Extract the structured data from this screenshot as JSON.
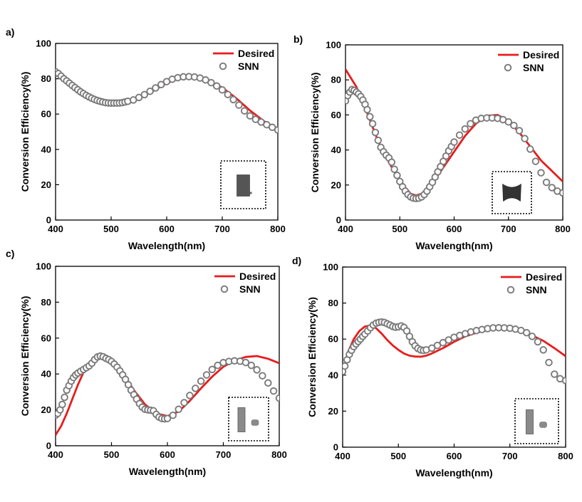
{
  "figure": {
    "colors": {
      "desired": "#e81c1c",
      "snn": "#7a7a7a",
      "axis": "#000000"
    }
  },
  "chart_data": [
    {
      "panel_label": "a)",
      "type": "line",
      "title": "",
      "xlabel": "Wavelength(nm)",
      "ylabel": "Conversion Efficiency(%)",
      "xlim": [
        400,
        800
      ],
      "ylim": [
        0,
        100
      ],
      "xticks": [
        400,
        500,
        600,
        700,
        800
      ],
      "yticks": [
        0,
        20,
        40,
        60,
        80,
        100
      ],
      "legend": {
        "entries": [
          "Desired",
          "SNN"
        ],
        "position": "top-right"
      },
      "inset": "unit-cell-rectangle",
      "series": [
        {
          "name": "Desired",
          "kind": "line",
          "x": [
            400,
            425,
            450,
            475,
            500,
            525,
            550,
            575,
            600,
            625,
            650,
            675,
            700,
            725,
            750,
            775,
            800
          ],
          "y": [
            84,
            78,
            72,
            68,
            66,
            66.5,
            69,
            73,
            77.5,
            80.5,
            81,
            79,
            75,
            69,
            62,
            56,
            51
          ]
        },
        {
          "name": "SNN",
          "kind": "scatter",
          "x": [
            400,
            405,
            410,
            415,
            420,
            425,
            430,
            435,
            440,
            445,
            450,
            455,
            460,
            465,
            470,
            475,
            480,
            485,
            490,
            495,
            500,
            505,
            510,
            515,
            520,
            525,
            530,
            540,
            550,
            560,
            570,
            580,
            590,
            600,
            610,
            620,
            630,
            640,
            650,
            660,
            670,
            680,
            690,
            700,
            710,
            720,
            730,
            740,
            750,
            760,
            770,
            780,
            790,
            800
          ],
          "y": [
            84,
            83,
            81.5,
            80,
            78.8,
            77.5,
            76.2,
            75,
            73.8,
            72.6,
            71.6,
            70.6,
            69.8,
            69,
            68.3,
            67.7,
            67.2,
            66.8,
            66.5,
            66.3,
            66.2,
            66.2,
            66.2,
            66.3,
            66.5,
            66.8,
            67.2,
            68,
            69.4,
            71,
            72.9,
            74.8,
            76.7,
            78.4,
            79.7,
            80.6,
            81.1,
            81.2,
            81,
            80.4,
            79.3,
            77.8,
            75.9,
            73.7,
            71.1,
            68.2,
            65.1,
            61.8,
            59,
            57,
            55.5,
            54,
            52.5,
            51
          ]
        }
      ]
    },
    {
      "panel_label": "b)",
      "type": "line",
      "title": "",
      "xlabel": "Wavelength(nm)",
      "ylabel": "Conversion Efficiency(%)",
      "xlim": [
        400,
        800
      ],
      "ylim": [
        0,
        100
      ],
      "xticks": [
        400,
        500,
        600,
        700,
        800
      ],
      "yticks": [
        0,
        20,
        40,
        60,
        80,
        100
      ],
      "legend": {
        "entries": [
          "Desired",
          "SNN"
        ],
        "position": "top-right"
      },
      "inset": "unit-cell-bowtie",
      "series": [
        {
          "name": "Desired",
          "kind": "line",
          "x": [
            400,
            420,
            440,
            460,
            480,
            500,
            520,
            530,
            540,
            560,
            580,
            600,
            620,
            640,
            660,
            680,
            700,
            720,
            740,
            760,
            780,
            800
          ],
          "y": [
            86,
            76,
            61,
            45,
            33,
            22,
            15,
            14,
            15,
            21,
            30,
            39,
            48,
            55,
            59.5,
            60,
            56.5,
            50,
            42,
            34,
            28,
            22
          ]
        },
        {
          "name": "SNN",
          "kind": "scatter",
          "x": [
            400,
            404,
            408,
            412,
            416,
            420,
            424,
            428,
            432,
            436,
            440,
            445,
            450,
            455,
            460,
            465,
            470,
            475,
            480,
            485,
            490,
            495,
            500,
            505,
            510,
            515,
            520,
            525,
            530,
            535,
            540,
            545,
            550,
            555,
            560,
            565,
            570,
            575,
            580,
            585,
            590,
            595,
            600,
            610,
            620,
            630,
            640,
            650,
            660,
            670,
            680,
            690,
            700,
            710,
            720,
            730,
            740,
            750,
            760,
            770,
            780,
            790,
            800
          ],
          "y": [
            68,
            71,
            73,
            74.5,
            74,
            73,
            72,
            70.5,
            68.5,
            66,
            63,
            59,
            55,
            50,
            45.5,
            41.5,
            39,
            37,
            35.5,
            33,
            29,
            25.5,
            22,
            19,
            16.5,
            14.5,
            13.2,
            12.5,
            12.3,
            12.5,
            13.2,
            14.5,
            16.5,
            19,
            21.5,
            24.5,
            27.5,
            30.5,
            33.5,
            36.5,
            39.5,
            42,
            44.5,
            48.5,
            52,
            55,
            57,
            58,
            58.3,
            58.3,
            58,
            57.3,
            56,
            54,
            51,
            46.5,
            40.5,
            33.5,
            27,
            21.5,
            18.5,
            16.5,
            15.5
          ]
        }
      ]
    },
    {
      "panel_label": "c)",
      "type": "line",
      "title": "",
      "xlabel": "Wavelength(nm)",
      "ylabel": "Conversion Efficiency(%)",
      "xlim": [
        400,
        800
      ],
      "ylim": [
        0,
        100
      ],
      "xticks": [
        400,
        500,
        600,
        700,
        800
      ],
      "yticks": [
        0,
        20,
        40,
        60,
        80,
        100
      ],
      "legend": {
        "entries": [
          "Desired",
          "SNN"
        ],
        "position": "top-right"
      },
      "inset": "unit-cell-bar-and-dot",
      "series": [
        {
          "name": "Desired",
          "kind": "line",
          "x": [
            400,
            410,
            420,
            430,
            440,
            450,
            460,
            470,
            480,
            490,
            500,
            520,
            540,
            560,
            580,
            600,
            620,
            640,
            660,
            680,
            700,
            720,
            740,
            760,
            780,
            800
          ],
          "y": [
            6,
            11,
            18,
            26,
            34,
            41,
            46,
            49,
            50,
            49.5,
            47.5,
            40.5,
            31,
            23,
            18,
            16.5,
            19,
            25,
            32,
            38.5,
            44,
            47.5,
            49.5,
            50,
            48.5,
            46
          ]
        },
        {
          "name": "SNN",
          "kind": "scatter",
          "x": [
            400,
            404,
            408,
            412,
            416,
            420,
            424,
            428,
            432,
            436,
            440,
            445,
            450,
            455,
            460,
            465,
            470,
            475,
            480,
            485,
            490,
            495,
            500,
            505,
            510,
            515,
            520,
            525,
            530,
            535,
            540,
            545,
            550,
            555,
            560,
            565,
            570,
            575,
            580,
            585,
            590,
            595,
            600,
            610,
            620,
            630,
            640,
            650,
            660,
            670,
            680,
            690,
            700,
            710,
            720,
            730,
            740,
            750,
            760,
            770,
            780,
            790,
            800
          ],
          "y": [
            17,
            18,
            20,
            23,
            27,
            31,
            33.5,
            36,
            38,
            39.5,
            40.5,
            41.5,
            42.5,
            43.5,
            44.5,
            46,
            48,
            49.5,
            50,
            49.6,
            48.7,
            48,
            47,
            45.5,
            43.8,
            41.7,
            39.5,
            37,
            34,
            31,
            28.5,
            26,
            23.5,
            21.5,
            20.3,
            20,
            19.8,
            19.5,
            17.5,
            16,
            15.2,
            15,
            15.2,
            17,
            20.3,
            24,
            28,
            32,
            36,
            39.5,
            42.5,
            44.8,
            46.3,
            47,
            47.3,
            47.1,
            46.4,
            44.8,
            42.3,
            39,
            35,
            30.5,
            26.5
          ]
        }
      ]
    },
    {
      "panel_label": "d)",
      "type": "line",
      "title": "",
      "xlabel": "Wavelength(nm)",
      "ylabel": "Conversion Efficiency(%)",
      "xlim": [
        400,
        800
      ],
      "ylim": [
        0,
        100
      ],
      "xticks": [
        400,
        500,
        600,
        700,
        800
      ],
      "yticks": [
        0,
        20,
        40,
        60,
        80,
        100
      ],
      "legend": {
        "entries": [
          "Desired",
          "SNN"
        ],
        "position": "top-right"
      },
      "inset": "unit-cell-bar-and-dot",
      "series": [
        {
          "name": "Desired",
          "kind": "line",
          "x": [
            400,
            410,
            420,
            430,
            440,
            450,
            460,
            470,
            480,
            490,
            500,
            510,
            520,
            530,
            540,
            550,
            560,
            580,
            600,
            620,
            640,
            660,
            680,
            700,
            720,
            740,
            760,
            780,
            800
          ],
          "y": [
            42,
            53,
            60,
            64.5,
            67,
            67.5,
            66,
            63,
            59.5,
            56.5,
            54,
            52,
            50.8,
            50.3,
            50.2,
            50.8,
            52,
            55,
            58.5,
            61.5,
            63.5,
            65,
            66,
            66,
            64.5,
            62,
            59,
            55,
            50.5
          ]
        },
        {
          "name": "SNN",
          "kind": "scatter",
          "x": [
            400,
            404,
            408,
            412,
            416,
            420,
            424,
            428,
            432,
            436,
            440,
            445,
            450,
            455,
            460,
            465,
            470,
            475,
            480,
            485,
            490,
            495,
            500,
            505,
            510,
            515,
            520,
            525,
            530,
            535,
            540,
            545,
            550,
            560,
            570,
            580,
            590,
            600,
            610,
            620,
            630,
            640,
            650,
            660,
            670,
            680,
            690,
            700,
            710,
            720,
            730,
            740,
            750,
            760,
            770,
            780,
            790,
            800
          ],
          "y": [
            42,
            45,
            48.5,
            51.5,
            53.8,
            55.8,
            57.3,
            58.7,
            60,
            61.5,
            62.8,
            64.5,
            66.3,
            67.8,
            68.8,
            69.3,
            69.5,
            69.2,
            68.5,
            67.8,
            67,
            66.6,
            66.8,
            67.3,
            66.5,
            64.5,
            61.5,
            58.5,
            56.3,
            54.8,
            54,
            53.7,
            54,
            55,
            56.5,
            58,
            59.5,
            61,
            62,
            63,
            64,
            64.7,
            65.3,
            65.8,
            66.2,
            66.3,
            66.2,
            66,
            65.5,
            64.8,
            63.5,
            61.5,
            58.5,
            54,
            47,
            40.5,
            38,
            37
          ]
        }
      ]
    }
  ]
}
